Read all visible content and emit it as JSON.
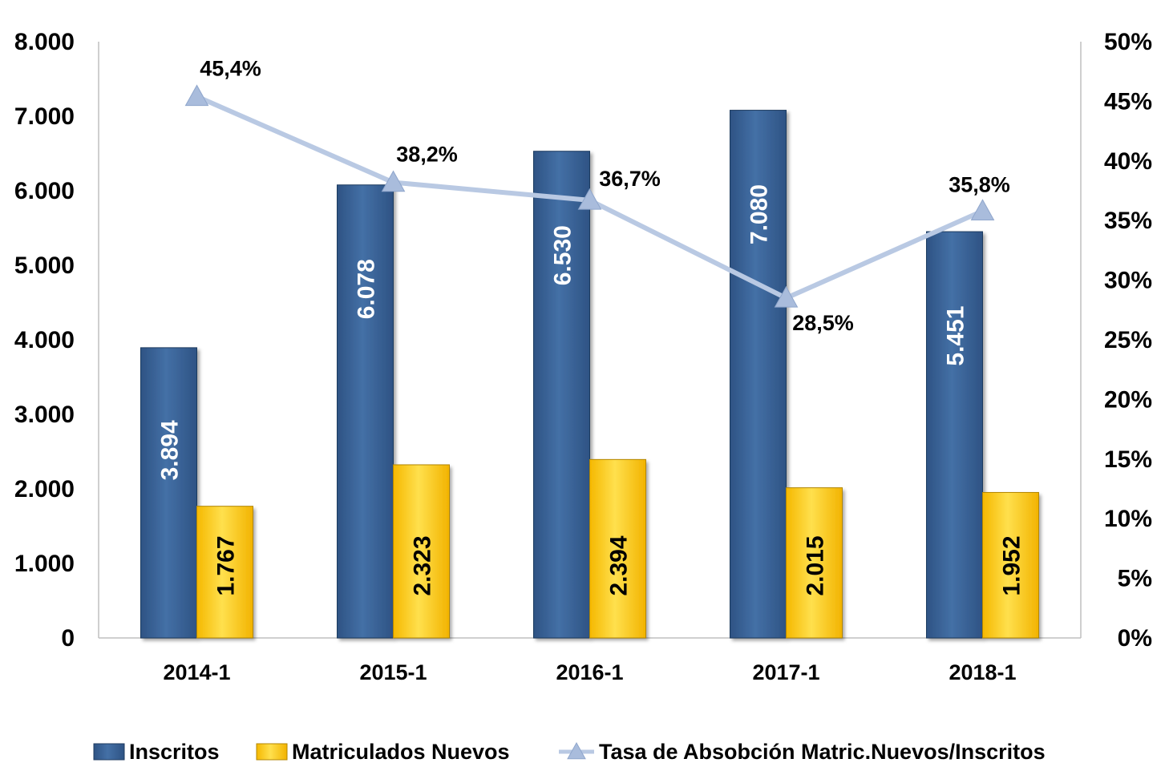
{
  "chart_data": {
    "type": "bar",
    "categories": [
      "2014-1",
      "2015-1",
      "2016-1",
      "2017-1",
      "2018-1"
    ],
    "series": [
      {
        "name": "Inscritos",
        "kind": "bar",
        "axis": "left",
        "color": "#3C6399",
        "label_color": "#FFFFFF",
        "values": [
          3894,
          6078,
          6530,
          7080,
          5451
        ],
        "labels": [
          "3.894",
          "6.078",
          "6.530",
          "7.080",
          "5.451"
        ]
      },
      {
        "name": "Matriculados Nuevos",
        "kind": "bar",
        "axis": "left",
        "color": "#FFCC00",
        "label_color": "#000000",
        "values": [
          1767,
          2323,
          2394,
          2015,
          1952
        ],
        "labels": [
          "1.767",
          "2.323",
          "2.394",
          "2.015",
          "1.952"
        ]
      },
      {
        "name": "Tasa de Absobción Matric.Nuevos/Inscritos",
        "kind": "line",
        "axis": "right",
        "color": "#B9C9E3",
        "values": [
          45.4,
          38.2,
          36.7,
          28.5,
          35.8
        ],
        "labels": [
          "45,4%",
          "38,2%",
          "36,7%",
          "28,5%",
          "35,8%"
        ]
      }
    ],
    "y_left": {
      "ylim": [
        0,
        8000
      ],
      "ticks": [
        0,
        1000,
        2000,
        3000,
        4000,
        5000,
        6000,
        7000,
        8000
      ],
      "tick_labels": [
        "0",
        "1.000",
        "2.000",
        "3.000",
        "4.000",
        "5.000",
        "6.000",
        "7.000",
        "8.000"
      ]
    },
    "y_right": {
      "ylim": [
        0,
        50
      ],
      "ticks": [
        0,
        5,
        10,
        15,
        20,
        25,
        30,
        35,
        40,
        45,
        50
      ],
      "tick_labels": [
        "0%",
        "5%",
        "10%",
        "15%",
        "20%",
        "25%",
        "30%",
        "35%",
        "40%",
        "45%",
        "50%"
      ]
    },
    "title": "",
    "xlabel": "",
    "ylabel": "",
    "grid": false,
    "legend": "bottom"
  }
}
